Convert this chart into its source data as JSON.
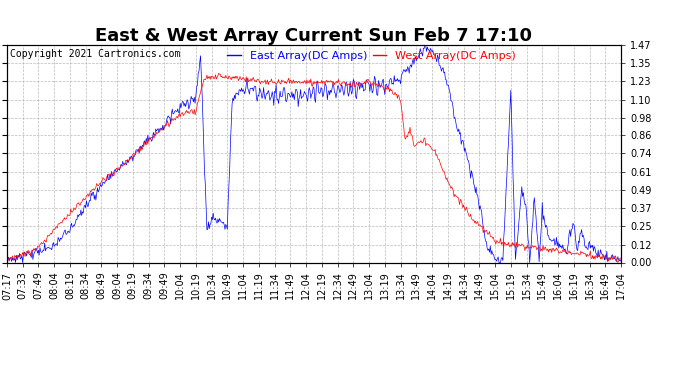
{
  "title": "East & West Array Current Sun Feb 7 17:10",
  "copyright": "Copyright 2021 Cartronics.com",
  "legend_east": "East Array(DC Amps)",
  "legend_west": "West Array(DC Amps)",
  "east_color": "blue",
  "west_color": "red",
  "background_color": "#ffffff",
  "grid_color": "#aaaaaa",
  "yticks": [
    0.0,
    0.12,
    0.25,
    0.37,
    0.49,
    0.61,
    0.74,
    0.86,
    0.98,
    1.1,
    1.23,
    1.35,
    1.47
  ],
  "ylim": [
    0.0,
    1.47
  ],
  "xtick_labels": [
    "07:17",
    "07:33",
    "07:49",
    "08:04",
    "08:19",
    "08:34",
    "08:49",
    "09:04",
    "09:19",
    "09:34",
    "09:49",
    "10:04",
    "10:19",
    "10:34",
    "10:49",
    "11:04",
    "11:19",
    "11:34",
    "11:49",
    "12:04",
    "12:19",
    "12:34",
    "12:49",
    "13:04",
    "13:19",
    "13:34",
    "13:49",
    "14:04",
    "14:19",
    "14:34",
    "14:49",
    "15:04",
    "15:19",
    "15:34",
    "15:49",
    "16:04",
    "16:19",
    "16:34",
    "16:49",
    "17:04"
  ],
  "title_fontsize": 13,
  "label_fontsize": 8,
  "tick_fontsize": 7,
  "copyright_fontsize": 7
}
